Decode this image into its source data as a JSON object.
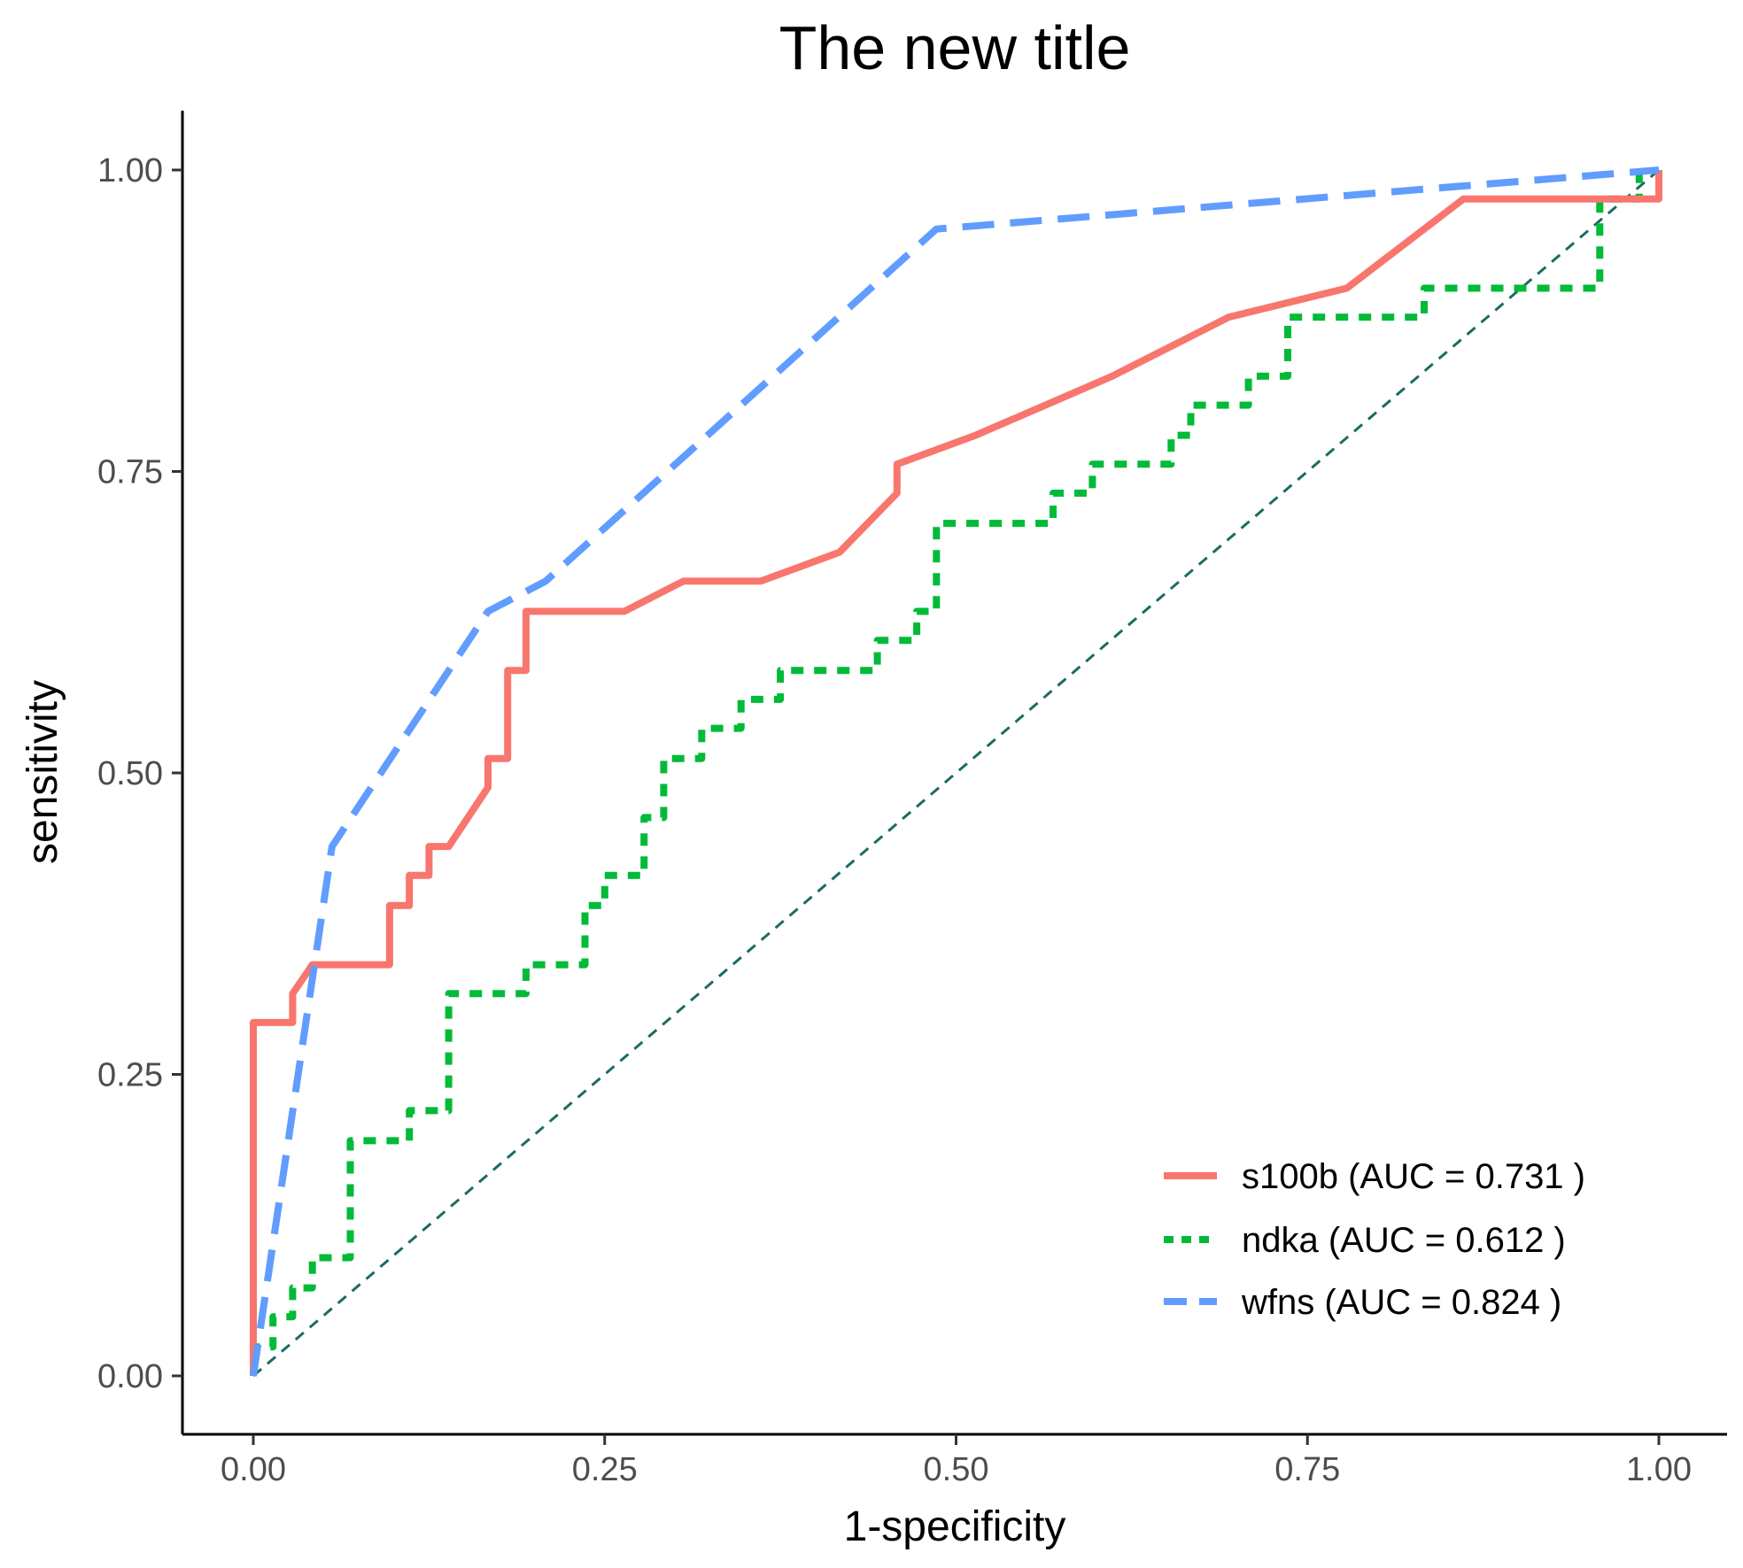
{
  "chart_data": {
    "type": "line",
    "title": "The new title",
    "xlabel": "1-specificity",
    "ylabel": "sensitivity",
    "xlim": [
      0,
      1
    ],
    "ylim": [
      0,
      1
    ],
    "x_ticks": [
      "0.00",
      "0.25",
      "0.50",
      "0.75",
      "1.00"
    ],
    "y_ticks": [
      "0.00",
      "0.25",
      "0.50",
      "0.75",
      "1.00"
    ],
    "grid": false,
    "legend_position": "bottom-right",
    "reference_line": {
      "x": [
        0,
        1
      ],
      "y": [
        0,
        1
      ],
      "color": "#1b6b63",
      "style": "dashed"
    },
    "series": [
      {
        "name": "s100b (AUC =  0.731 )",
        "color": "#f8766d",
        "style": "solid",
        "x": [
          0,
          0,
          0.028,
          0.028,
          0.042,
          0.097,
          0.097,
          0.111,
          0.111,
          0.125,
          0.125,
          0.139,
          0.167,
          0.167,
          0.181,
          0.181,
          0.194,
          0.194,
          0.264,
          0.306,
          0.361,
          0.417,
          0.458,
          0.458,
          0.514,
          0.611,
          0.694,
          0.778,
          0.861,
          1.0,
          1.0
        ],
        "y": [
          0,
          0.293,
          0.293,
          0.317,
          0.341,
          0.341,
          0.39,
          0.39,
          0.415,
          0.415,
          0.439,
          0.439,
          0.488,
          0.512,
          0.512,
          0.585,
          0.585,
          0.634,
          0.634,
          0.659,
          0.659,
          0.683,
          0.732,
          0.756,
          0.78,
          0.829,
          0.878,
          0.902,
          0.976,
          0.976,
          1.0
        ]
      },
      {
        "name": "ndka (AUC =  0.612 )",
        "color": "#00ba38",
        "style": "dotted",
        "x": [
          0,
          0,
          0.014,
          0.014,
          0.028,
          0.028,
          0.042,
          0.042,
          0.056,
          0.056,
          0.069,
          0.069,
          0.083,
          0.083,
          0.111,
          0.111,
          0.139,
          0.139,
          0.194,
          0.194,
          0.236,
          0.236,
          0.25,
          0.25,
          0.278,
          0.278,
          0.292,
          0.292,
          0.306,
          0.306,
          0.319,
          0.319,
          0.347,
          0.347,
          0.375,
          0.375,
          0.389,
          0.389,
          0.444,
          0.444,
          0.472,
          0.472,
          0.486,
          0.486,
          0.569,
          0.569,
          0.597,
          0.597,
          0.653,
          0.653,
          0.667,
          0.667,
          0.708,
          0.708,
          0.736,
          0.736,
          0.75,
          0.75,
          0.833,
          0.833,
          0.847,
          0.847,
          0.958,
          0.958,
          0.986,
          0.986
        ],
        "y": [
          0,
          0.024,
          0.024,
          0.049,
          0.049,
          0.073,
          0.073,
          0.098,
          0.098,
          0.098,
          0.098,
          0.195,
          0.195,
          0.195,
          0.195,
          0.22,
          0.22,
          0.317,
          0.317,
          0.341,
          0.341,
          0.39,
          0.39,
          0.415,
          0.415,
          0.463,
          0.463,
          0.512,
          0.512,
          0.512,
          0.512,
          0.537,
          0.537,
          0.561,
          0.561,
          0.585,
          0.585,
          0.585,
          0.585,
          0.61,
          0.61,
          0.634,
          0.634,
          0.707,
          0.707,
          0.732,
          0.732,
          0.756,
          0.756,
          0.78,
          0.78,
          0.805,
          0.805,
          0.829,
          0.829,
          0.878,
          0.878,
          0.878,
          0.878,
          0.902,
          0.902,
          0.902,
          0.902,
          0.976,
          0.976,
          1.0
        ]
      },
      {
        "name": "wfns (AUC =  0.824 )",
        "color": "#619cff",
        "style": "dashed",
        "x": [
          0,
          0.056,
          0.167,
          0.208,
          0.486,
          1.0
        ],
        "y": [
          0,
          0.439,
          0.634,
          0.659,
          0.951,
          1.0
        ]
      }
    ]
  }
}
